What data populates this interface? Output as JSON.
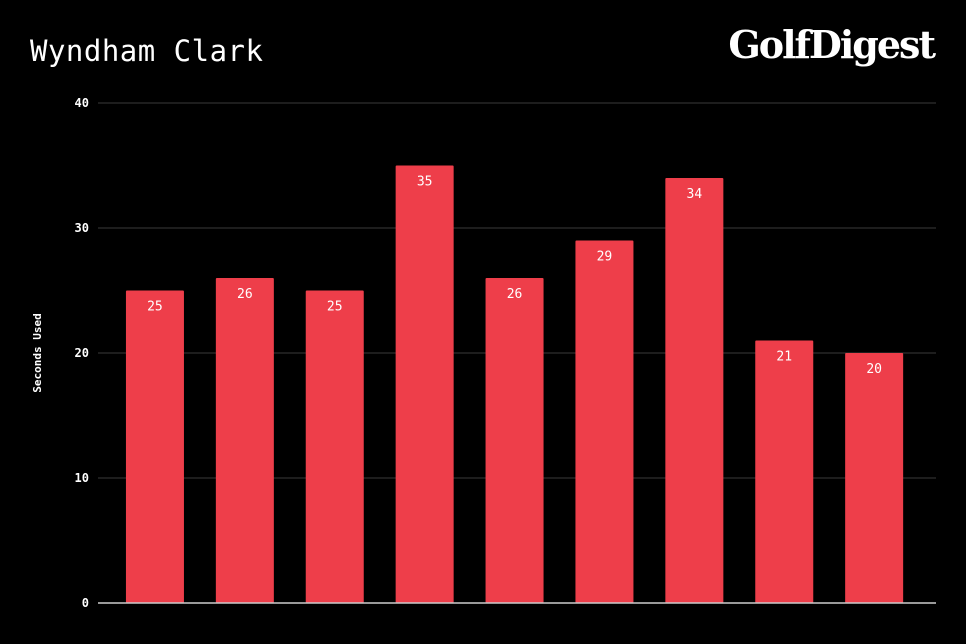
{
  "header": {
    "title": "Wyndham Clark",
    "logo_text": "GolfDigest"
  },
  "colors": {
    "background": "#000000",
    "bar": "#ee3e4a",
    "gridline": "#3a3a3a",
    "axis": "#cccccc",
    "text": "#ffffff"
  },
  "chart_data": {
    "type": "bar",
    "title": "Wyndham Clark",
    "xlabel": "",
    "ylabel": "Seconds Used",
    "ylim": [
      0,
      40
    ],
    "yticks": [
      0,
      10,
      20,
      30,
      40
    ],
    "grid": true,
    "legend": "none",
    "categories": [
      "",
      "",
      "",
      "",
      "",
      "",
      "",
      "",
      ""
    ],
    "values": [
      25,
      26,
      25,
      35,
      26,
      29,
      34,
      21,
      20
    ],
    "data_labels": true
  }
}
